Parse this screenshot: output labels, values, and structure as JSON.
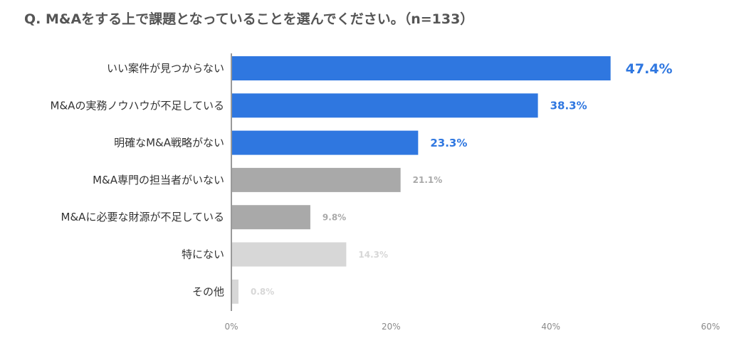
{
  "chart_data": {
    "type": "bar",
    "orientation": "horizontal",
    "title": "Q. M&Aをする上で課題となっていることを選んでください。（n=133）",
    "categories": [
      "いい案件が見つからない",
      "M&Aの実務ノウハウが不足している",
      "明確なM&A戦略がない",
      "M&A専門の担当者がいない",
      "M&Aに必要な財源が不足している",
      "特にない",
      "その他"
    ],
    "values": [
      47.4,
      38.3,
      23.3,
      21.1,
      9.8,
      14.3,
      0.8
    ],
    "value_labels": [
      "47.4%",
      "38.3%",
      "23.3%",
      "21.1%",
      "9.8%",
      "14.3%",
      "0.8%"
    ],
    "bar_colors": [
      "#2f77e0",
      "#2f77e0",
      "#2f77e0",
      "#a9a9a9",
      "#a9a9a9",
      "#d7d7d7",
      "#d7d7d7"
    ],
    "label_colors": [
      "#2f77e0",
      "#2f77e0",
      "#2f77e0",
      "#a9a9a9",
      "#a9a9a9",
      "#d7d7d7",
      "#d7d7d7"
    ],
    "xlim": [
      0,
      60
    ],
    "xticks": [
      0,
      20,
      40,
      60
    ],
    "xtick_labels": [
      "0%",
      "20%",
      "40%",
      "60%"
    ],
    "grid": false,
    "legend": "none"
  }
}
